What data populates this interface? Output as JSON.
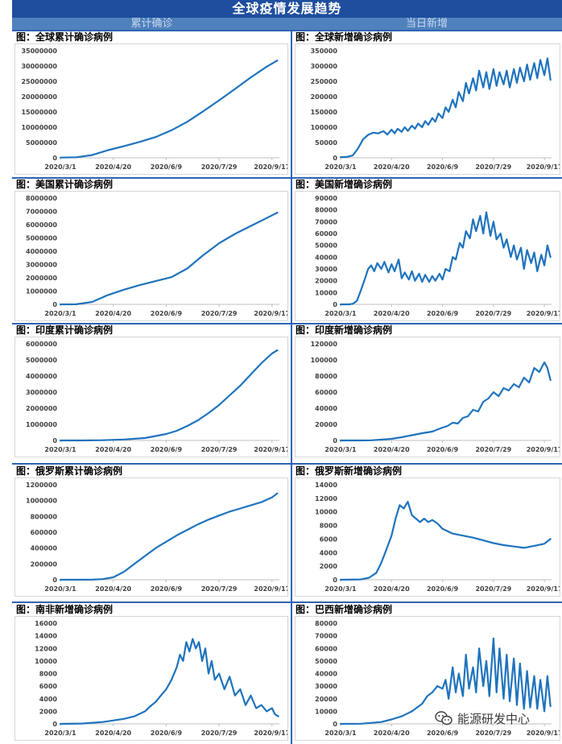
{
  "header": {
    "title": "全球疫情发展趋势",
    "left_column": "累计确诊",
    "right_column": "当日新增"
  },
  "watermark": "能源研发中心",
  "colors": {
    "line": "#1f73bd",
    "title_bg": "#1f4e9e",
    "header_bg": "#4f81bd",
    "rule": "#2e64b4"
  },
  "x_tick_labels": [
    "2020/3/1",
    "2020/4/20",
    "2020/6/9",
    "2020/7/29",
    "2020/9/17"
  ],
  "x_tick_days": [
    0,
    50,
    100,
    150,
    200
  ],
  "chart_data": [
    {
      "type": "line",
      "title": "图：全球累计确诊病例",
      "ylim": [
        0,
        35000000
      ],
      "yticks": [
        0,
        5000000,
        10000000,
        15000000,
        20000000,
        25000000,
        30000000,
        35000000
      ],
      "y_tick_labels": [
        "0",
        "5000000",
        "10000000",
        "15000000",
        "20000000",
        "25000000",
        "30000000",
        "35000000"
      ],
      "x": [
        0,
        15,
        30,
        45,
        60,
        75,
        90,
        105,
        120,
        135,
        150,
        165,
        180,
        195,
        205
      ],
      "y": [
        90000,
        180000,
        900000,
        2500000,
        3800000,
        5200000,
        6800000,
        9000000,
        11800000,
        15200000,
        18800000,
        22500000,
        26300000,
        29800000,
        31800000
      ]
    },
    {
      "type": "line",
      "title": "图：全球新增确诊病例",
      "ylim": [
        0,
        350000
      ],
      "yticks": [
        0,
        50000,
        100000,
        150000,
        200000,
        250000,
        300000,
        350000
      ],
      "y_tick_labels": [
        "0",
        "50000",
        "100000",
        "150000",
        "200000",
        "250000",
        "300000",
        "350000"
      ],
      "x": [
        0,
        6,
        12,
        17,
        22,
        27,
        32,
        37,
        42,
        46,
        50,
        53,
        56,
        60,
        63,
        66,
        70,
        73,
        76,
        80,
        83,
        86,
        90,
        93,
        96,
        100,
        103,
        106,
        110,
        113,
        116,
        120,
        123,
        126,
        130,
        133,
        136,
        140,
        143,
        146,
        150,
        153,
        156,
        160,
        163,
        166,
        170,
        173,
        176,
        180,
        183,
        186,
        190,
        193,
        196,
        200,
        203,
        206
      ],
      "y": [
        2000,
        3000,
        8000,
        30000,
        60000,
        75000,
        82000,
        80000,
        87000,
        76000,
        92000,
        80000,
        95000,
        85000,
        100000,
        88000,
        105000,
        95000,
        112000,
        100000,
        120000,
        108000,
        130000,
        118000,
        145000,
        130000,
        165000,
        150000,
        190000,
        165000,
        215000,
        185000,
        245000,
        210000,
        260000,
        220000,
        285000,
        230000,
        280000,
        225000,
        290000,
        235000,
        280000,
        240000,
        285000,
        230000,
        290000,
        245000,
        295000,
        250000,
        305000,
        255000,
        310000,
        260000,
        320000,
        270000,
        325000,
        255000
      ]
    },
    {
      "type": "line",
      "title": "图：美国累计确诊病例",
      "ylim": [
        0,
        8000000
      ],
      "yticks": [
        0,
        1000000,
        2000000,
        3000000,
        4000000,
        5000000,
        6000000,
        7000000,
        8000000
      ],
      "y_tick_labels": [
        "0",
        "1000000",
        "2000000",
        "3000000",
        "4000000",
        "5000000",
        "6000000",
        "7000000",
        "8000000"
      ],
      "x": [
        0,
        15,
        30,
        45,
        60,
        75,
        90,
        105,
        120,
        135,
        150,
        165,
        180,
        195,
        205
      ],
      "y": [
        70,
        5000,
        180000,
        700000,
        1100000,
        1450000,
        1750000,
        2050000,
        2700000,
        3700000,
        4600000,
        5300000,
        5900000,
        6500000,
        6900000
      ]
    },
    {
      "type": "line",
      "title": "图：美国新增确诊病例",
      "ylim": [
        0,
        90000
      ],
      "yticks": [
        0,
        10000,
        20000,
        30000,
        40000,
        50000,
        60000,
        70000,
        80000,
        90000
      ],
      "y_tick_labels": [
        "0",
        "10000",
        "20000",
        "30000",
        "40000",
        "50000",
        "60000",
        "70000",
        "80000",
        "90000"
      ],
      "x": [
        0,
        8,
        12,
        16,
        20,
        24,
        27,
        30,
        33,
        36,
        40,
        43,
        47,
        50,
        53,
        57,
        60,
        63,
        67,
        70,
        73,
        77,
        80,
        83,
        87,
        90,
        93,
        97,
        100,
        103,
        107,
        110,
        113,
        117,
        120,
        123,
        127,
        130,
        133,
        137,
        140,
        143,
        147,
        150,
        153,
        157,
        160,
        163,
        167,
        170,
        173,
        177,
        180,
        183,
        187,
        190,
        193,
        197,
        200,
        203,
        206
      ],
      "y": [
        0,
        0,
        500,
        3000,
        12000,
        22000,
        30000,
        33000,
        28000,
        35000,
        30000,
        36000,
        27000,
        34000,
        28000,
        38000,
        22000,
        27000,
        21000,
        28000,
        20000,
        26000,
        19000,
        25000,
        19000,
        24000,
        20000,
        26000,
        21000,
        30000,
        28000,
        40000,
        38000,
        52000,
        48000,
        62000,
        56000,
        72000,
        62000,
        75000,
        60000,
        78000,
        58000,
        70000,
        55000,
        60000,
        48000,
        55000,
        40000,
        50000,
        38000,
        48000,
        30000,
        46000,
        35000,
        44000,
        28000,
        42000,
        33000,
        50000,
        40000
      ]
    },
    {
      "type": "line",
      "title": "图：印度累计确诊病例",
      "ylim": [
        0,
        6000000
      ],
      "yticks": [
        0,
        1000000,
        2000000,
        3000000,
        4000000,
        5000000,
        6000000
      ],
      "y_tick_labels": [
        "0",
        "1000000",
        "2000000",
        "3000000",
        "4000000",
        "5000000",
        "6000000"
      ],
      "x": [
        0,
        20,
        40,
        60,
        80,
        100,
        110,
        120,
        130,
        140,
        150,
        160,
        170,
        180,
        190,
        200,
        205
      ],
      "y": [
        0,
        1000,
        15000,
        60000,
        150000,
        400000,
        600000,
        900000,
        1250000,
        1700000,
        2200000,
        2800000,
        3400000,
        4100000,
        4800000,
        5400000,
        5600000
      ]
    },
    {
      "type": "line",
      "title": "图：印度新增确诊病例",
      "ylim": [
        0,
        120000
      ],
      "yticks": [
        0,
        20000,
        40000,
        60000,
        80000,
        100000,
        120000
      ],
      "y_tick_labels": [
        "0",
        "20000",
        "40000",
        "60000",
        "80000",
        "100000",
        "120000"
      ],
      "x": [
        0,
        20,
        30,
        40,
        50,
        60,
        70,
        80,
        90,
        100,
        105,
        110,
        115,
        120,
        125,
        130,
        135,
        140,
        145,
        150,
        155,
        160,
        165,
        170,
        175,
        180,
        185,
        190,
        195,
        200,
        203,
        206
      ],
      "y": [
        0,
        50,
        200,
        1000,
        2000,
        4000,
        6500,
        9000,
        11000,
        16000,
        18000,
        22000,
        21000,
        28000,
        30000,
        38000,
        36000,
        48000,
        52000,
        60000,
        55000,
        65000,
        62000,
        70000,
        66000,
        78000,
        72000,
        90000,
        85000,
        97000,
        90000,
        75000
      ]
    },
    {
      "type": "line",
      "title": "图：俄罗斯累计确诊病例",
      "ylim": [
        0,
        1200000
      ],
      "yticks": [
        0,
        200000,
        400000,
        600000,
        800000,
        1000000,
        1200000
      ],
      "y_tick_labels": [
        "0",
        "200000",
        "400000",
        "600000",
        "800000",
        "1000000",
        "1200000"
      ],
      "x": [
        0,
        20,
        30,
        40,
        50,
        60,
        70,
        80,
        90,
        100,
        110,
        120,
        130,
        140,
        150,
        160,
        170,
        180,
        190,
        200,
        205
      ],
      "y": [
        0,
        0,
        1000,
        8000,
        30000,
        100000,
        200000,
        300000,
        400000,
        480000,
        560000,
        630000,
        700000,
        760000,
        810000,
        860000,
        900000,
        940000,
        980000,
        1040000,
        1090000
      ]
    },
    {
      "type": "line",
      "title": "图：俄罗斯新增确诊病例",
      "ylim": [
        0,
        14000
      ],
      "yticks": [
        0,
        2000,
        4000,
        6000,
        8000,
        10000,
        12000,
        14000
      ],
      "y_tick_labels": [
        "0",
        "2000",
        "4000",
        "6000",
        "8000",
        "10000",
        "12000",
        "14000"
      ],
      "x": [
        0,
        20,
        28,
        35,
        40,
        45,
        50,
        54,
        58,
        62,
        66,
        70,
        74,
        78,
        82,
        86,
        90,
        95,
        100,
        110,
        120,
        130,
        140,
        150,
        160,
        170,
        180,
        190,
        200,
        206
      ],
      "y": [
        0,
        50,
        300,
        1000,
        2500,
        4500,
        6500,
        9000,
        11000,
        10500,
        11500,
        9500,
        9000,
        8500,
        9000,
        8500,
        8800,
        8300,
        7500,
        6800,
        6500,
        6200,
        5800,
        5400,
        5100,
        4900,
        4700,
        5000,
        5300,
        6000
      ]
    },
    {
      "type": "line",
      "title": "图：南非新增确诊病例",
      "ylim": [
        0,
        16000
      ],
      "yticks": [
        0,
        2000,
        4000,
        6000,
        8000,
        10000,
        12000,
        14000,
        16000
      ],
      "y_tick_labels": [
        "0",
        "2000",
        "4000",
        "6000",
        "8000",
        "10000",
        "12000",
        "14000",
        "16000"
      ],
      "x": [
        0,
        20,
        40,
        60,
        70,
        80,
        85,
        90,
        95,
        100,
        105,
        110,
        113,
        116,
        119,
        122,
        125,
        128,
        131,
        134,
        137,
        140,
        143,
        146,
        150,
        155,
        160,
        165,
        170,
        175,
        180,
        185,
        190,
        195,
        200,
        203,
        206
      ],
      "y": [
        0,
        50,
        300,
        800,
        1200,
        2000,
        2800,
        3500,
        4500,
        5500,
        7000,
        9000,
        11000,
        10000,
        13000,
        11500,
        13500,
        12000,
        13000,
        10000,
        12000,
        8000,
        10000,
        7000,
        8000,
        5500,
        7500,
        4500,
        5500,
        3000,
        4500,
        2500,
        3000,
        2000,
        2500,
        1500,
        1200
      ]
    },
    {
      "type": "line",
      "title": "图：巴西新增确诊病例",
      "ylim": [
        0,
        80000
      ],
      "yticks": [
        0,
        10000,
        20000,
        30000,
        40000,
        50000,
        60000,
        70000,
        80000
      ],
      "y_tick_labels": [
        "0",
        "10000",
        "20000",
        "30000",
        "40000",
        "50000",
        "60000",
        "70000",
        "80000"
      ],
      "x": [
        0,
        20,
        40,
        50,
        60,
        70,
        75,
        80,
        85,
        90,
        95,
        100,
        103,
        106,
        110,
        113,
        116,
        120,
        123,
        126,
        130,
        133,
        136,
        140,
        143,
        146,
        150,
        153,
        156,
        160,
        163,
        166,
        170,
        173,
        176,
        180,
        183,
        186,
        190,
        193,
        196,
        200,
        203,
        206
      ],
      "y": [
        0,
        100,
        1500,
        3500,
        6000,
        10000,
        13000,
        16000,
        22000,
        25000,
        30000,
        28000,
        35000,
        20000,
        45000,
        25000,
        40000,
        22000,
        55000,
        28000,
        45000,
        25000,
        60000,
        30000,
        50000,
        22000,
        68000,
        25000,
        60000,
        20000,
        55000,
        18000,
        52000,
        15000,
        48000,
        12000,
        42000,
        13000,
        38000,
        12000,
        35000,
        10000,
        38000,
        14000
      ]
    }
  ]
}
